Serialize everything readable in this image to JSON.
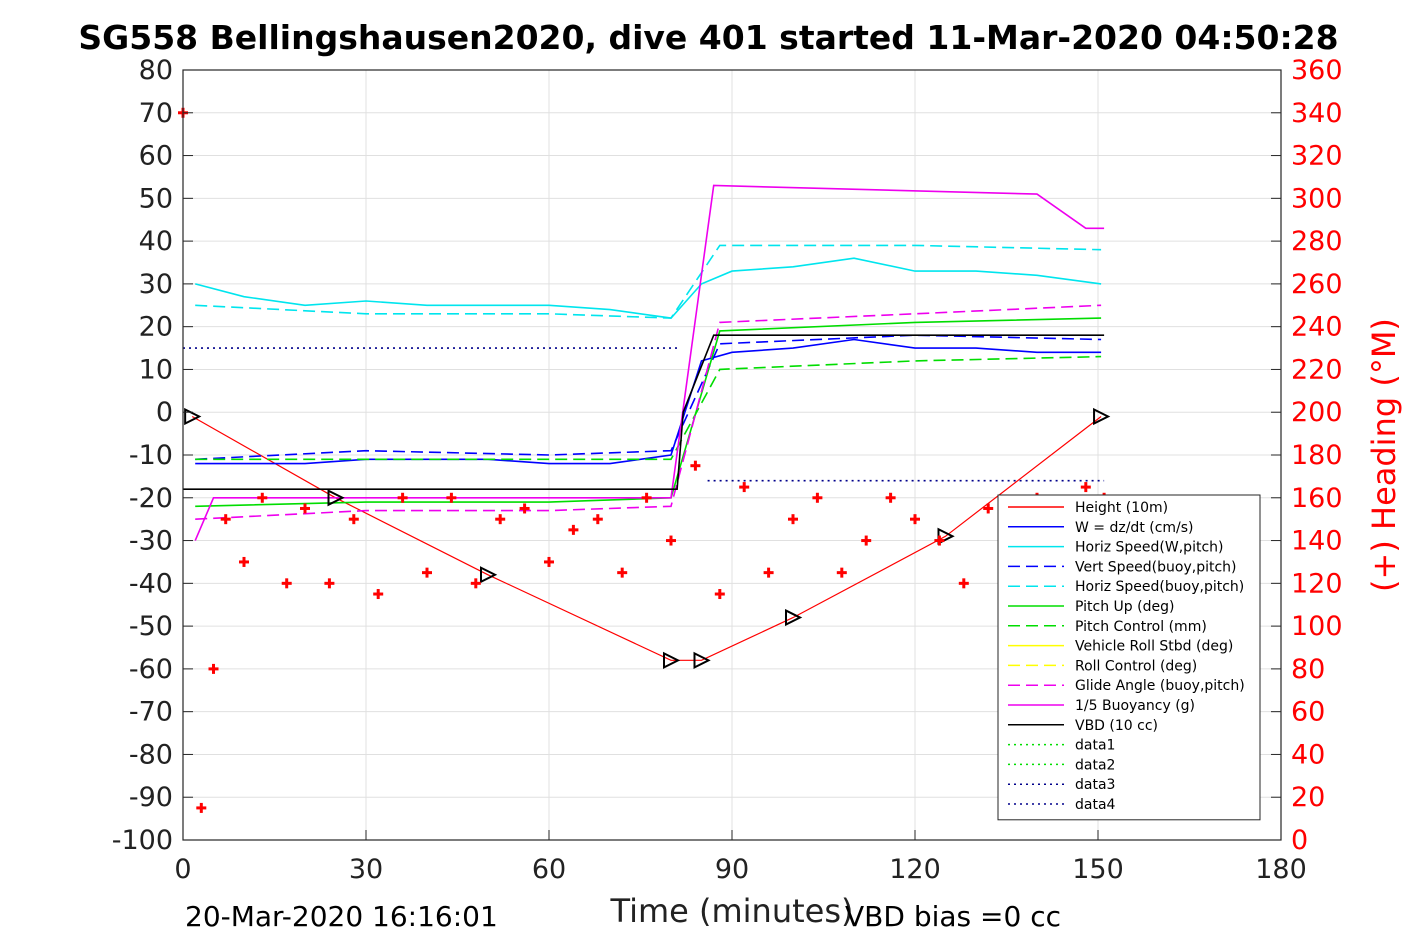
{
  "title": "SG558 Bellingshausen2020, dive 401 started 11-Mar-2020 04:50:28",
  "footer": {
    "timestamp": "20-Mar-2020 16:16:01",
    "vbd_bias": "VBD bias =0 cc"
  },
  "colors": {
    "height": "#ff0000",
    "w": "#0000ff",
    "horiz_speed": "#00e5ee",
    "pitch": "#00dd00",
    "roll": "#ffff00",
    "glide": "#ee00ee",
    "vbd": "#000000",
    "data_blue": "#00008b"
  },
  "chart_data": {
    "type": "line",
    "xlabel": "Time (minutes)",
    "ylabel_left": "",
    "ylabel_right": "(+) Heading (°M)",
    "xlim": [
      0,
      180
    ],
    "ylim_left": [
      -100,
      80
    ],
    "ylim_right": [
      0,
      360
    ],
    "x_ticks": [
      "0",
      "30",
      "60",
      "90",
      "120",
      "150",
      "180"
    ],
    "y_ticks_left": [
      "80",
      "70",
      "60",
      "50",
      "40",
      "30",
      "20",
      "10",
      "0",
      "-10",
      "-20",
      "-30",
      "-40",
      "-50",
      "-60",
      "-70",
      "-80",
      "-90",
      "-100"
    ],
    "y_ticks_right": [
      "360",
      "340",
      "320",
      "300",
      "280",
      "260",
      "240",
      "220",
      "200",
      "180",
      "160",
      "140",
      "120",
      "100",
      "80",
      "60",
      "40",
      "20",
      "0"
    ],
    "grid": true,
    "legend_position": "bottom-right",
    "legend": [
      {
        "label": "Height (10m)",
        "color": "#ff0000",
        "dash": "solid"
      },
      {
        "label": "W = dz/dt (cm/s)",
        "color": "#0000ff",
        "dash": "solid"
      },
      {
        "label": "Horiz Speed(W,pitch)",
        "color": "#00e5ee",
        "dash": "solid"
      },
      {
        "label": "Vert Speed(buoy,pitch)",
        "color": "#0000ff",
        "dash": "dashed"
      },
      {
        "label": "Horiz Speed(buoy,pitch)",
        "color": "#00e5ee",
        "dash": "dashed"
      },
      {
        "label": "Pitch Up (deg)",
        "color": "#00dd00",
        "dash": "solid"
      },
      {
        "label": "Pitch Control (mm)",
        "color": "#00dd00",
        "dash": "dashed"
      },
      {
        "label": "Vehicle Roll Stbd (deg)",
        "color": "#ffff00",
        "dash": "solid"
      },
      {
        "label": "Roll Control (deg)",
        "color": "#ffff00",
        "dash": "dashed"
      },
      {
        "label": "Glide Angle (buoy,pitch)",
        "color": "#ee00ee",
        "dash": "dashed"
      },
      {
        "label": "1/5 Buoyancy (g)",
        "color": "#ee00ee",
        "dash": "solid"
      },
      {
        "label": "VBD (10 cc)",
        "color": "#000000",
        "dash": "solid"
      },
      {
        "label": "data1",
        "color": "#00dd00",
        "dash": "dotted"
      },
      {
        "label": "data2",
        "color": "#00dd00",
        "dash": "dotted"
      },
      {
        "label": "data3",
        "color": "#00008b",
        "dash": "dotted"
      },
      {
        "label": "data4",
        "color": "#00008b",
        "dash": "dotted"
      }
    ],
    "series": [
      {
        "name": "Height (10m)",
        "x": [
          1.5,
          25,
          50,
          80,
          85,
          100,
          125,
          150.5
        ],
        "y": [
          -1,
          -20,
          -38,
          -58,
          -58,
          -48,
          -29,
          -1
        ]
      },
      {
        "name": "W = dz/dt (cm/s)",
        "x": [
          2,
          10,
          20,
          30,
          40,
          50,
          60,
          70,
          80,
          85,
          90,
          100,
          110,
          120,
          130,
          140,
          150.5
        ],
        "y": [
          -12,
          -12,
          -12,
          -11,
          -11,
          -11,
          -12,
          -12,
          -10,
          12,
          14,
          15,
          17,
          15,
          15,
          14,
          14
        ]
      },
      {
        "name": "Horiz Speed(W,pitch)",
        "x": [
          2,
          10,
          20,
          30,
          40,
          50,
          60,
          70,
          80,
          85,
          90,
          100,
          110,
          120,
          130,
          140,
          150.5
        ],
        "y": [
          30,
          27,
          25,
          26,
          25,
          25,
          25,
          24,
          22,
          30,
          33,
          34,
          36,
          33,
          33,
          32,
          30
        ]
      },
      {
        "name": "Vert Speed(buoy,pitch)",
        "x": [
          2,
          30,
          60,
          80,
          88,
          120,
          150.5
        ],
        "y": [
          -11,
          -9,
          -10,
          -9,
          16,
          18,
          17
        ]
      },
      {
        "name": "Horiz Speed(buoy,pitch)",
        "x": [
          2,
          30,
          60,
          80,
          88,
          120,
          150.5
        ],
        "y": [
          25,
          23,
          23,
          22,
          39,
          39,
          38
        ]
      },
      {
        "name": "Pitch Up (deg)",
        "x": [
          2,
          30,
          60,
          80,
          88,
          120,
          150.5
        ],
        "y": [
          -22,
          -21,
          -21,
          -20,
          19,
          21,
          22
        ]
      },
      {
        "name": "Pitch Control (mm)",
        "x": [
          2,
          30,
          60,
          80,
          88,
          120,
          150.5
        ],
        "y": [
          -11,
          -11,
          -11,
          -11,
          10,
          12,
          13
        ]
      },
      {
        "name": "Glide Angle (buoy,pitch)",
        "x": [
          2,
          30,
          60,
          80,
          88,
          120,
          150.5
        ],
        "y": [
          -25,
          -23,
          -23,
          -22,
          21,
          23,
          25
        ]
      },
      {
        "name": "1/5 Buoyancy (g)",
        "x": [
          2,
          5,
          80,
          87,
          140,
          148,
          151
        ],
        "y": [
          -30,
          -20,
          -20,
          53,
          51,
          43,
          43
        ]
      },
      {
        "name": "VBD (10 cc)",
        "x": [
          0,
          81,
          82,
          87,
          151
        ],
        "y": [
          -18,
          -18,
          0,
          18,
          18
        ]
      },
      {
        "name": "data3",
        "x": [
          0,
          81
        ],
        "y": [
          15,
          15
        ]
      },
      {
        "name": "data4",
        "x": [
          86,
          151
        ],
        "y": [
          -16,
          -16
        ]
      },
      {
        "name": "(+) Heading (°M)",
        "axis": "right",
        "x": [
          0,
          3,
          5,
          7,
          10,
          13,
          17,
          20,
          24,
          28,
          32,
          36,
          40,
          44,
          48,
          52,
          56,
          60,
          64,
          68,
          72,
          76,
          80,
          84,
          88,
          92,
          96,
          100,
          104,
          108,
          112,
          116,
          120,
          124,
          128,
          132,
          136,
          140,
          144,
          148,
          151
        ],
        "y": [
          340,
          15,
          80,
          150,
          130,
          160,
          120,
          155,
          120,
          150,
          115,
          160,
          125,
          160,
          120,
          150,
          155,
          130,
          145,
          150,
          125,
          160,
          140,
          175,
          115,
          165,
          125,
          150,
          160,
          125,
          140,
          160,
          150,
          140,
          120,
          155,
          140,
          160,
          155,
          165,
          160
        ]
      }
    ]
  }
}
